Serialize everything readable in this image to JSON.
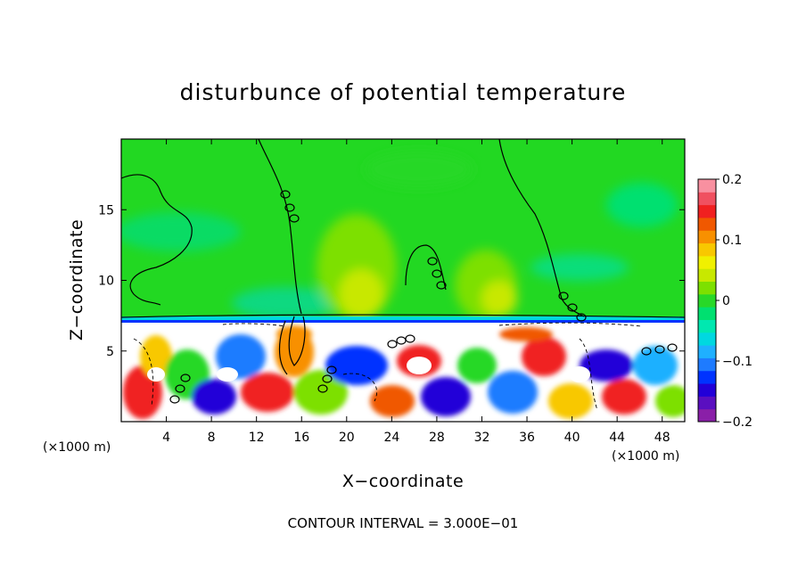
{
  "chart_data": {
    "type": "heatmap",
    "title": "disturbunce of potential temperature",
    "xlabel": "X−coordinate",
    "ylabel": "Z−coordinate",
    "x_unit_left": "(×1000 m)",
    "x_unit_right": "(×1000 m)",
    "xlim": [
      0,
      50
    ],
    "ylim": [
      0,
      20
    ],
    "x_ticks": [
      {
        "value": 4,
        "label": "4"
      },
      {
        "value": 8,
        "label": "8"
      },
      {
        "value": 12,
        "label": "12"
      },
      {
        "value": 16,
        "label": "16"
      },
      {
        "value": 20,
        "label": "20"
      },
      {
        "value": 24,
        "label": "24"
      },
      {
        "value": 28,
        "label": "28"
      },
      {
        "value": 32,
        "label": "32"
      },
      {
        "value": 36,
        "label": "36"
      },
      {
        "value": 40,
        "label": "40"
      },
      {
        "value": 44,
        "label": "44"
      },
      {
        "value": 48,
        "label": "48"
      }
    ],
    "y_ticks": [
      {
        "value": 5,
        "label": "5"
      },
      {
        "value": 10,
        "label": "10"
      },
      {
        "value": 15,
        "label": "15"
      }
    ],
    "colorbar": {
      "min": -0.2,
      "max": 0.2,
      "ticks": [
        {
          "value": 0.2,
          "label": "0.2"
        },
        {
          "value": 0.1,
          "label": "0.1"
        },
        {
          "value": 0,
          "label": "0"
        },
        {
          "value": -0.1,
          "label": "−0.1"
        },
        {
          "value": -0.2,
          "label": "−0.2"
        }
      ],
      "colors": [
        "#8a1fa8",
        "#5a0fc0",
        "#2200d8",
        "#0033ff",
        "#1e7bff",
        "#1fb0ff",
        "#00d8e0",
        "#00e8b0",
        "#00e070",
        "#28d828",
        "#7de000",
        "#c8e800",
        "#f0f000",
        "#f8c800",
        "#f89000",
        "#f05800",
        "#f02020",
        "#f05060",
        "#f890a0"
      ]
    },
    "annotation": "CONTOUR INTERVAL = 3.000E−01",
    "contour_interval": 0.3,
    "grid": false
  }
}
